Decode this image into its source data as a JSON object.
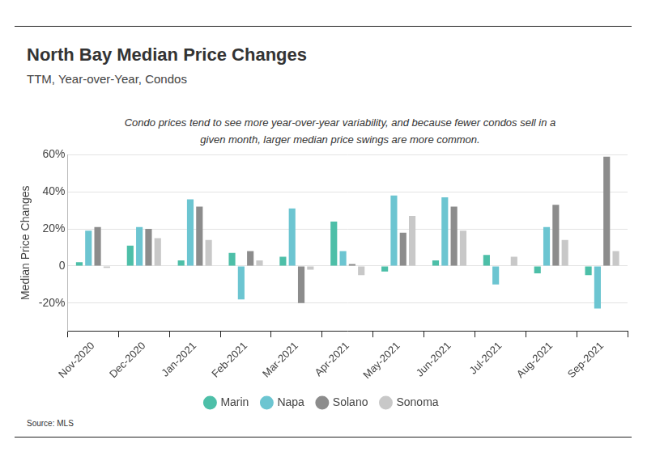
{
  "chart_data": {
    "type": "bar",
    "title": "North Bay Median Price Changes",
    "subtitle": "TTM, Year-over-Year, Condos",
    "annotation": "Condo prices tend to see more year-over-year variability, and because fewer condos sell in a given month, larger median price swings are more common.",
    "y_label": "Median Price Changes",
    "source": "Source: MLS",
    "categories": [
      "Nov-2020",
      "Dec-2020",
      "Jan-2021",
      "Feb-2021",
      "Mar-2021",
      "Apr-2021",
      "May-2021",
      "Jun-2021",
      "Jul-2021",
      "Aug-2021",
      "Sep-2021"
    ],
    "series": [
      {
        "name": "Marin",
        "color": "#4dbfa8",
        "values": [
          2,
          11,
          3,
          7,
          5,
          24,
          -3,
          3,
          6,
          -4,
          -5
        ]
      },
      {
        "name": "Napa",
        "color": "#6cc5d1",
        "values": [
          19,
          21,
          36,
          -18,
          31,
          8,
          38,
          37,
          -10,
          21,
          -23
        ]
      },
      {
        "name": "Solano",
        "color": "#8c8c8c",
        "values": [
          21,
          20,
          32,
          8,
          -20,
          1,
          18,
          32,
          0,
          33,
          59
        ]
      },
      {
        "name": "Sonoma",
        "color": "#c8c8c8",
        "values": [
          -1,
          15,
          14,
          3,
          -2,
          -5,
          27,
          19,
          5,
          14,
          8
        ]
      }
    ],
    "ylim": [
      -35,
      60
    ],
    "yticks": [
      {
        "value": -20,
        "label": "-20%"
      },
      0,
      {
        "value": 20,
        "label": "20%"
      },
      {
        "value": 40,
        "label": "40%"
      },
      {
        "value": 60,
        "label": "60%"
      }
    ],
    "grid": true,
    "legend": "bottom"
  }
}
